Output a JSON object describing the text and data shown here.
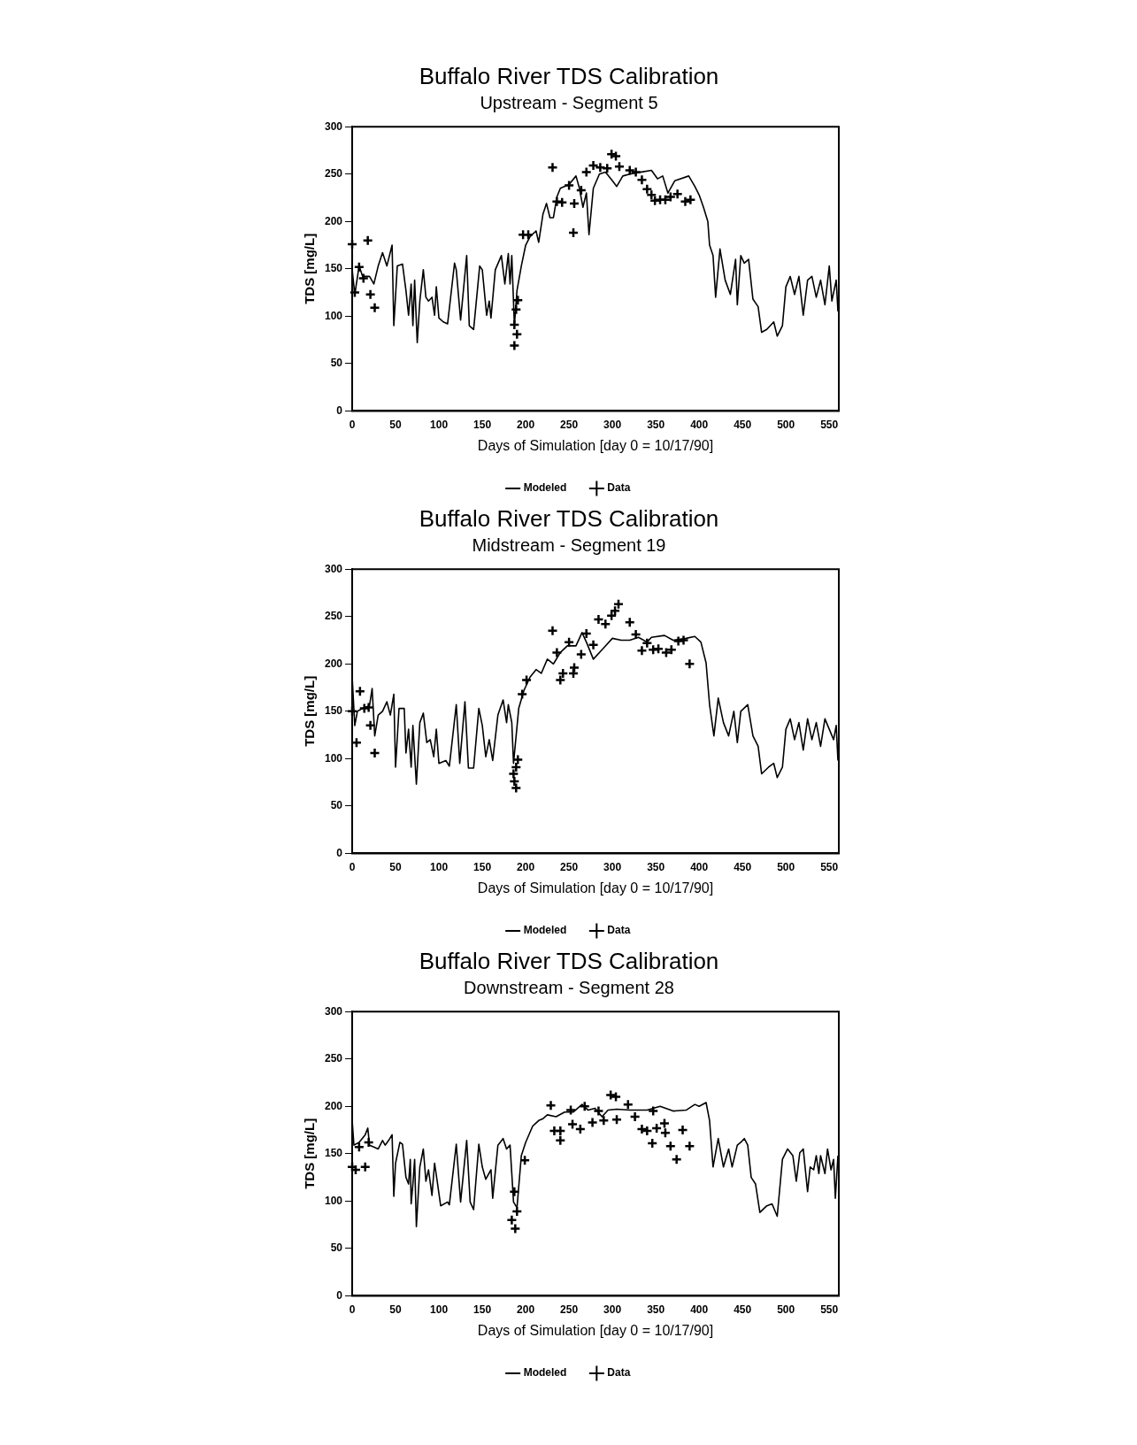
{
  "chart_data": [
    {
      "type": "line",
      "title": "Buffalo River TDS Calibration",
      "subtitle": "Upstream - Segment 5",
      "xlabel": "Days of Simulation [day 0 = 10/17/90]",
      "ylabel": "TDS [mg/L]",
      "xlim": [
        0,
        561
      ],
      "xticks": [
        0,
        50,
        100,
        150,
        200,
        250,
        300,
        350,
        400,
        450,
        500,
        550
      ],
      "ylim": [
        0,
        300
      ],
      "yticks": [
        0,
        50,
        100,
        150,
        200,
        250,
        300
      ],
      "grid": false,
      "legend": "bottom",
      "series": [
        {
          "name": "Modeled",
          "type": "line",
          "color": "#000000",
          "marker": "none",
          "line_style": "solid",
          "x": [
            0,
            3,
            8,
            12,
            20,
            25,
            30,
            35,
            40,
            46,
            48,
            52,
            58,
            62,
            65,
            68,
            70,
            72,
            75,
            78,
            82,
            85,
            88,
            92,
            95,
            97,
            100,
            105,
            110,
            118,
            120,
            125,
            132,
            135,
            140,
            147,
            150,
            155,
            158,
            160,
            165,
            172,
            176,
            180,
            182,
            184,
            187,
            190,
            195,
            200,
            205,
            212,
            215,
            220,
            224,
            228,
            232,
            236,
            240,
            250,
            258,
            262,
            266,
            270,
            273,
            278,
            285,
            292,
            300,
            305,
            312,
            320,
            332,
            345,
            352,
            358,
            364,
            372,
            388,
            395,
            400,
            405,
            410,
            412,
            416,
            419,
            424,
            430,
            436,
            442,
            444,
            448,
            452,
            457,
            462,
            468,
            472,
            478,
            486,
            490,
            496,
            500,
            505,
            510,
            515,
            520,
            525,
            530,
            535,
            540,
            545,
            550,
            553,
            558,
            560
          ],
          "values": [
            149,
            123,
            153,
            142,
            142,
            134,
            153,
            167,
            153,
            175,
            90,
            153,
            155,
            127,
            101,
            134,
            90,
            138,
            72,
            116,
            149,
            120,
            116,
            120,
            101,
            131,
            98,
            94,
            92,
            156,
            149,
            96,
            164,
            90,
            86,
            153,
            149,
            101,
            116,
            98,
            149,
            164,
            134,
            166,
            134,
            164,
            90,
            127,
            153,
            175,
            184,
            190,
            178,
            208,
            219,
            204,
            204,
            226,
            235,
            239,
            248,
            235,
            215,
            230,
            186,
            235,
            250,
            252,
            243,
            237,
            248,
            250,
            252,
            254,
            245,
            248,
            230,
            243,
            248,
            237,
            228,
            215,
            200,
            175,
            164,
            120,
            171,
            138,
            123,
            160,
            112,
            164,
            156,
            160,
            118,
            110,
            83,
            86,
            94,
            79,
            90,
            131,
            142,
            123,
            142,
            101,
            138,
            142,
            120,
            138,
            112,
            153,
            116,
            138,
            105
          ]
        },
        {
          "name": "Data",
          "type": "scatter",
          "color": "#000000",
          "marker": "cross",
          "x": [
            0,
            3,
            8,
            13,
            18,
            21,
            26,
            187,
            189,
            191,
            190,
            187,
            197,
            203,
            231,
            236,
            242,
            250,
            256,
            255,
            264,
            270,
            278,
            286,
            294,
            299,
            304,
            308,
            320,
            327,
            334,
            340,
            345,
            349,
            355,
            361,
            367,
            375,
            384,
            390
          ],
          "values": [
            176,
            125,
            152,
            140,
            180,
            123,
            109,
            91,
            107,
            117,
            81,
            69,
            186,
            186,
            257,
            221,
            220,
            238,
            219,
            188,
            233,
            252,
            259,
            257,
            256,
            271,
            269,
            258,
            254,
            252,
            244,
            234,
            228,
            222,
            223,
            223,
            226,
            229,
            221,
            223
          ]
        }
      ]
    },
    {
      "type": "line",
      "title": "Buffalo River TDS Calibration",
      "subtitle": "Midstream - Segment 19",
      "xlabel": "Days of Simulation [day 0 = 10/17/90]",
      "ylabel": "TDS [mg/L]",
      "xlim": [
        0,
        561
      ],
      "xticks": [
        0,
        50,
        100,
        150,
        200,
        250,
        300,
        350,
        400,
        450,
        500,
        550
      ],
      "ylim": [
        0,
        300
      ],
      "yticks": [
        0,
        50,
        100,
        150,
        200,
        250,
        300
      ],
      "grid": false,
      "legend": "bottom",
      "series": [
        {
          "name": "Modeled",
          "type": "line",
          "color": "#000000",
          "marker": "none",
          "line_style": "solid",
          "x": [
            0,
            3,
            6,
            12,
            20,
            23,
            26,
            30,
            35,
            40,
            44,
            48,
            50,
            54,
            60,
            62,
            65,
            68,
            70,
            74,
            78,
            82,
            86,
            90,
            94,
            97,
            100,
            108,
            112,
            120,
            124,
            130,
            134,
            140,
            146,
            150,
            154,
            158,
            162,
            168,
            174,
            178,
            180,
            184,
            186,
            192,
            198,
            205,
            212,
            218,
            225,
            232,
            240,
            248,
            258,
            265,
            270,
            278,
            285,
            292,
            300,
            310,
            320,
            330,
            340,
            345,
            360,
            370,
            385,
            395,
            402,
            408,
            412,
            417,
            422,
            428,
            434,
            440,
            444,
            448,
            456,
            462,
            468,
            472,
            480,
            486,
            490,
            496,
            500,
            505,
            510,
            515,
            520,
            525,
            530,
            535,
            540,
            545,
            550,
            555,
            558,
            560
          ],
          "values": [
            186,
            135,
            150,
            153,
            156,
            174,
            124,
            146,
            150,
            160,
            146,
            168,
            91,
            153,
            153,
            106,
            131,
            91,
            135,
            73,
            138,
            148,
            117,
            120,
            102,
            131,
            95,
            98,
            92,
            157,
            95,
            160,
            90,
            90,
            153,
            135,
            102,
            120,
            98,
            146,
            162,
            138,
            157,
            138,
            95,
            153,
            172,
            186,
            194,
            190,
            205,
            200,
            212,
            219,
            219,
            233,
            223,
            205,
            212,
            219,
            227,
            225,
            225,
            228,
            223,
            228,
            230,
            225,
            227,
            229,
            223,
            201,
            157,
            124,
            164,
            138,
            124,
            150,
            117,
            150,
            157,
            124,
            113,
            84,
            91,
            95,
            80,
            91,
            131,
            142,
            120,
            138,
            109,
            142,
            120,
            138,
            113,
            142,
            131,
            120,
            135,
            98
          ]
        },
        {
          "name": "Data",
          "type": "scatter",
          "color": "#000000",
          "marker": "cross",
          "x": [
            0,
            9,
            5,
            14,
            19,
            21,
            26,
            186,
            189,
            191,
            187,
            189,
            196,
            201,
            231,
            236,
            240,
            243,
            250,
            255,
            256,
            264,
            270,
            278,
            284,
            292,
            299,
            303,
            307,
            320,
            327,
            334,
            340,
            347,
            353,
            362,
            368,
            376,
            382,
            389
          ],
          "values": [
            150,
            171,
            117,
            153,
            154,
            135,
            106,
            84,
            91,
            99,
            76,
            69,
            168,
            183,
            235,
            212,
            183,
            190,
            223,
            190,
            196,
            210,
            232,
            220,
            247,
            242,
            251,
            256,
            263,
            244,
            231,
            214,
            222,
            215,
            216,
            212,
            215,
            224,
            225,
            200
          ]
        }
      ]
    },
    {
      "type": "line",
      "title": "Buffalo River TDS Calibration",
      "subtitle": "Downstream - Segment 28",
      "xlabel": "Days of Simulation [day 0 = 10/17/90]",
      "ylabel": "TDS [mg/L]",
      "xlim": [
        0,
        561
      ],
      "xticks": [
        0,
        50,
        100,
        150,
        200,
        250,
        300,
        350,
        400,
        450,
        500,
        550
      ],
      "ylim": [
        0,
        300
      ],
      "yticks": [
        0,
        50,
        100,
        150,
        200,
        250,
        300
      ],
      "grid": false,
      "legend": "bottom",
      "series": [
        {
          "name": "Modeled",
          "type": "line",
          "color": "#000000",
          "marker": "none",
          "line_style": "solid",
          "x": [
            0,
            2,
            8,
            15,
            18,
            20,
            25,
            30,
            35,
            38,
            42,
            46,
            48,
            50,
            55,
            58,
            62,
            65,
            67,
            68,
            70,
            72,
            74,
            78,
            82,
            85,
            88,
            92,
            95,
            98,
            102,
            110,
            112,
            120,
            125,
            132,
            136,
            140,
            146,
            150,
            154,
            160,
            162,
            168,
            174,
            178,
            182,
            186,
            190,
            195,
            200,
            208,
            215,
            220,
            225,
            235,
            245,
            255,
            265,
            272,
            280,
            288,
            295,
            305,
            320,
            340,
            355,
            370,
            385,
            395,
            400,
            408,
            412,
            416,
            422,
            428,
            434,
            438,
            444,
            448,
            452,
            456,
            460,
            465,
            470,
            478,
            484,
            490,
            496,
            502,
            508,
            512,
            516,
            520,
            525,
            528,
            532,
            535,
            538,
            540,
            545,
            548,
            552,
            555,
            557,
            560
          ],
          "values": [
            185,
            159,
            162,
            170,
            177,
            159,
            157,
            155,
            164,
            159,
            164,
            170,
            105,
            140,
            162,
            160,
            125,
            118,
            144,
            97,
            118,
            144,
            73,
            136,
            155,
            121,
            133,
            106,
            140,
            121,
            95,
            99,
            96,
            160,
            99,
            164,
            99,
            91,
            160,
            136,
            123,
            133,
            103,
            159,
            166,
            155,
            159,
            99,
            93,
            148,
            162,
            179,
            185,
            187,
            191,
            189,
            194,
            194,
            202,
            196,
            198,
            189,
            196,
            197,
            196,
            196,
            200,
            195,
            196,
            202,
            200,
            204,
            185,
            136,
            166,
            136,
            155,
            136,
            159,
            162,
            166,
            159,
            125,
            118,
            88,
            95,
            97,
            84,
            144,
            155,
            148,
            121,
            151,
            155,
            110,
            136,
            133,
            148,
            129,
            148,
            129,
            155,
            133,
            144,
            103,
            148
          ]
        },
        {
          "name": "Data",
          "type": "scatter",
          "color": "#000000",
          "marker": "cross",
          "x": [
            0,
            4,
            8,
            15,
            19,
            187,
            190,
            184,
            188,
            199,
            229,
            233,
            240,
            240,
            252,
            254,
            263,
            268,
            277,
            284,
            290,
            298,
            304,
            305,
            318,
            326,
            334,
            340,
            346,
            347,
            351,
            360,
            361,
            367,
            374,
            381,
            389
          ],
          "values": [
            136,
            133,
            157,
            136,
            162,
            110,
            89,
            80,
            71,
            143,
            201,
            174,
            174,
            164,
            196,
            181,
            176,
            200,
            183,
            195,
            185,
            212,
            210,
            186,
            202,
            189,
            176,
            174,
            161,
            195,
            177,
            182,
            172,
            158,
            144,
            175,
            158
          ]
        }
      ]
    }
  ]
}
